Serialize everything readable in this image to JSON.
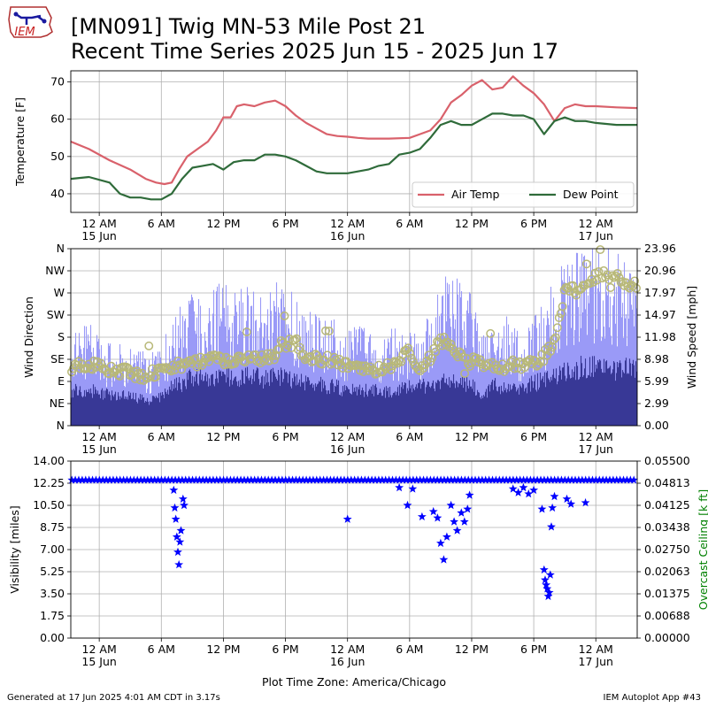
{
  "header": {
    "logo_text": "IEM",
    "title_line1": "[MN091] Twig MN-53 Mile Post 21",
    "title_line2": "Recent Time Series 2025 Jun 15 - 2025 Jun 17"
  },
  "footer": {
    "generated": "Generated at 17 Jun 2025 4:01 AM CDT in 3.17s",
    "app": "IEM Autoplot App #43"
  },
  "colors": {
    "air_temp": "#d9616b",
    "dew_point": "#2f6b3a",
    "wind_gust": "#9a9af7",
    "wind_speed": "#383896",
    "wind_dir": "#b8b878",
    "visibility": "#0000ff",
    "ceiling_axis": "#008000"
  },
  "chart_data": [
    {
      "type": "line",
      "x_unit": "hours since 15 Jun 2025 00:00 CDT (Plot Time Zone: America/Chicago)",
      "x_range": [
        -2.75,
        52.0
      ],
      "xticks": [
        {
          "x": 0,
          "l1": "12 AM",
          "l2": "15 Jun"
        },
        {
          "x": 6,
          "l1": "6 AM",
          "l2": ""
        },
        {
          "x": 12,
          "l1": "12 PM",
          "l2": ""
        },
        {
          "x": 18,
          "l1": "6 PM",
          "l2": ""
        },
        {
          "x": 24,
          "l1": "12 AM",
          "l2": "16 Jun"
        },
        {
          "x": 30,
          "l1": "6 AM",
          "l2": ""
        },
        {
          "x": 36,
          "l1": "12 PM",
          "l2": ""
        },
        {
          "x": 42,
          "l1": "6 PM",
          "l2": ""
        },
        {
          "x": 48,
          "l1": "12 AM",
          "l2": "17 Jun"
        }
      ],
      "ylabel": "Temperature [F]",
      "ylim": [
        35,
        73
      ],
      "yticks": [
        40,
        50,
        60,
        70
      ],
      "grid": true,
      "legend_position": "lower-right",
      "legend_columns": 2,
      "series": [
        {
          "name": "Air Temp",
          "key": "air_temp",
          "x": [
            -2.75,
            -1,
            1,
            3,
            4.5,
            5.5,
            6.3,
            7,
            7.7,
            8.5,
            9.5,
            10.5,
            11.3,
            12,
            12.7,
            13.3,
            14,
            15,
            16,
            17,
            18,
            19,
            20,
            21,
            22,
            23,
            24,
            25,
            26,
            28,
            30,
            31,
            32,
            33,
            34,
            35,
            36,
            37,
            38,
            39,
            40,
            41,
            42,
            43,
            44,
            45,
            46,
            47,
            48,
            50,
            52
          ],
          "y": [
            54,
            52,
            49,
            46.5,
            44,
            43,
            42.6,
            43,
            46.5,
            50,
            52,
            54,
            57,
            60.5,
            60.5,
            63.5,
            64,
            63.5,
            64.5,
            65,
            63.5,
            61,
            59,
            57.5,
            56,
            55.5,
            55.3,
            55,
            54.8,
            54.8,
            55,
            56,
            57,
            60,
            64.5,
            66.5,
            69,
            70.5,
            68,
            68.5,
            71.5,
            69,
            67,
            64,
            59.5,
            63,
            64,
            63.5,
            63.5,
            63.2,
            63
          ]
        },
        {
          "name": "Dew Point",
          "key": "dew_point",
          "x": [
            -2.75,
            -1,
            1,
            2,
            3,
            4,
            5,
            6,
            7,
            8,
            9,
            10,
            11,
            12,
            13,
            14,
            15,
            16,
            17,
            18,
            19,
            20,
            21,
            22,
            23,
            24,
            25,
            26,
            27,
            28,
            29,
            30,
            31,
            32,
            33,
            34,
            35,
            36,
            37,
            38,
            39,
            40,
            41,
            42,
            43,
            44,
            45,
            46,
            47,
            48,
            50,
            52
          ],
          "y": [
            44,
            44.5,
            43,
            40,
            39,
            39,
            38.5,
            38.5,
            40,
            44,
            47,
            47.5,
            48,
            46.5,
            48.5,
            49,
            49,
            50.5,
            50.5,
            50,
            49,
            47.5,
            46,
            45.5,
            45.5,
            45.5,
            46,
            46.5,
            47.5,
            48,
            50.5,
            51,
            52,
            55,
            58.5,
            59.5,
            58.5,
            58.5,
            60,
            61.5,
            61.5,
            61,
            61,
            60,
            56,
            59.5,
            60.5,
            59.5,
            59.5,
            59,
            58.5,
            58.5
          ]
        }
      ]
    },
    {
      "type": "bar",
      "x_unit": "hours since 15 Jun 2025 00:00 CDT (Plot Time Zone: America/Chicago)",
      "x_range": [
        -2.75,
        52.0
      ],
      "xticks": [
        {
          "x": 0,
          "l1": "12 AM",
          "l2": "15 Jun"
        },
        {
          "x": 6,
          "l1": "6 AM",
          "l2": ""
        },
        {
          "x": 12,
          "l1": "12 PM",
          "l2": ""
        },
        {
          "x": 18,
          "l1": "6 PM",
          "l2": ""
        },
        {
          "x": 24,
          "l1": "12 AM",
          "l2": "16 Jun"
        },
        {
          "x": 30,
          "l1": "6 AM",
          "l2": ""
        },
        {
          "x": 36,
          "l1": "12 PM",
          "l2": ""
        },
        {
          "x": 42,
          "l1": "6 PM",
          "l2": ""
        },
        {
          "x": 48,
          "l1": "12 AM",
          "l2": "17 Jun"
        }
      ],
      "ylabel": "Wind Direction",
      "ylim": [
        0,
        360
      ],
      "yticks": [
        {
          "v": 0,
          "l": "N"
        },
        {
          "v": 45,
          "l": "NE"
        },
        {
          "v": 90,
          "l": "E"
        },
        {
          "v": 135,
          "l": "SE"
        },
        {
          "v": 180,
          "l": "S"
        },
        {
          "v": 225,
          "l": "SW"
        },
        {
          "v": 270,
          "l": "W"
        },
        {
          "v": 315,
          "l": "NW"
        },
        {
          "v": 360,
          "l": "N"
        }
      ],
      "y2label": "Wind Speed [mph]",
      "y2lim": [
        0,
        23.96
      ],
      "y2ticks": [
        "0.00",
        "2.99",
        "5.99",
        "8.98",
        "11.98",
        "14.97",
        "17.97",
        "20.96",
        "23.96"
      ],
      "grid": true,
      "wind_gust_mph": {
        "x": [
          -2.75,
          -1,
          1,
          3,
          5,
          6,
          7,
          8,
          9,
          10,
          11,
          12,
          13,
          14,
          15,
          16,
          17,
          18,
          19,
          20,
          21,
          22,
          23,
          24,
          25,
          26,
          27,
          28,
          29,
          30,
          31,
          32,
          33,
          34,
          35,
          36,
          37,
          38,
          39,
          40,
          41,
          42,
          43,
          44,
          45,
          46,
          47,
          48,
          49,
          50,
          51,
          52
        ],
        "y": [
          10,
          10,
          8,
          8,
          7,
          8,
          10,
          12,
          13,
          14,
          13,
          15,
          13,
          14,
          13,
          12,
          14,
          14,
          13,
          12,
          11,
          11,
          10,
          9.5,
          10,
          9.5,
          9,
          9.5,
          10,
          10,
          9,
          11,
          14,
          15,
          14,
          13,
          9,
          13,
          11,
          10,
          10,
          11,
          12,
          15,
          16,
          17,
          18,
          18,
          18,
          17,
          17,
          17
        ]
      },
      "wind_speed_mph": {
        "x": [
          -2.75,
          -1,
          1,
          3,
          5,
          6,
          7,
          8,
          9,
          10,
          11,
          12,
          13,
          14,
          15,
          16,
          17,
          18,
          19,
          20,
          21,
          22,
          23,
          24,
          25,
          26,
          27,
          28,
          29,
          30,
          31,
          32,
          33,
          34,
          35,
          36,
          37,
          38,
          39,
          40,
          41,
          42,
          43,
          44,
          45,
          46,
          47,
          48,
          49,
          50,
          51,
          52
        ],
        "y": [
          5,
          5,
          4.5,
          4,
          3.5,
          4,
          6,
          6,
          7,
          7,
          6.5,
          7,
          7,
          7,
          7,
          6.5,
          7,
          7,
          6.5,
          6,
          6,
          5.5,
          5.5,
          5,
          5,
          5,
          5,
          5,
          5,
          5.5,
          5.5,
          6,
          6,
          6.5,
          6,
          6,
          4,
          6,
          5.5,
          5.5,
          5.5,
          6,
          6.5,
          7,
          7.5,
          8,
          8.5,
          8.5,
          8.5,
          8,
          8,
          8
        ]
      },
      "wind_direction_deg": {
        "x": [
          -2.75,
          -1,
          0,
          1,
          2,
          3,
          4,
          5,
          6,
          7,
          8,
          9,
          10,
          11,
          12,
          13,
          14,
          15,
          16,
          17,
          18,
          19,
          20,
          21,
          22,
          23,
          24,
          25,
          26,
          27,
          28,
          29,
          30,
          31,
          32,
          33,
          34,
          35,
          36,
          37,
          38,
          39,
          40,
          41,
          42,
          43,
          44,
          45,
          46,
          47,
          48,
          49,
          50,
          51,
          52
        ],
        "y": [
          120,
          125,
          120,
          115,
          110,
          110,
          100,
          105,
          110,
          115,
          125,
          130,
          130,
          135,
          130,
          130,
          140,
          135,
          135,
          140,
          165,
          170,
          140,
          135,
          135,
          135,
          120,
          120,
          115,
          115,
          120,
          130,
          155,
          110,
          140,
          175,
          165,
          140,
          130,
          125,
          125,
          120,
          125,
          125,
          125,
          140,
          175,
          275,
          275,
          285,
          305,
          310,
          300,
          290,
          285
        ]
      }
    },
    {
      "type": "scatter",
      "x_unit": "hours since 15 Jun 2025 00:00 CDT (Plot Time Zone: America/Chicago)",
      "x_range": [
        -2.75,
        52.0
      ],
      "xticks": [
        {
          "x": 0,
          "l1": "12 AM",
          "l2": "15 Jun"
        },
        {
          "x": 6,
          "l1": "6 AM",
          "l2": ""
        },
        {
          "x": 12,
          "l1": "12 PM",
          "l2": ""
        },
        {
          "x": 18,
          "l1": "6 PM",
          "l2": ""
        },
        {
          "x": 24,
          "l1": "12 AM",
          "l2": "16 Jun"
        },
        {
          "x": 30,
          "l1": "6 AM",
          "l2": ""
        },
        {
          "x": 36,
          "l1": "12 PM",
          "l2": ""
        },
        {
          "x": 42,
          "l1": "6 PM",
          "l2": ""
        },
        {
          "x": 48,
          "l1": "12 AM",
          "l2": "17 Jun"
        }
      ],
      "xlabel": "Plot Time Zone: America/Chicago",
      "ylabel": "Visibility [miles]",
      "ylim": [
        0,
        14
      ],
      "yticks": [
        "0.00",
        "1.75",
        "3.50",
        "5.25",
        "7.00",
        "8.75",
        "10.50",
        "12.25",
        "14.00"
      ],
      "y2label": "Overcast Ceiling [k ft]",
      "y2lim": [
        0,
        0.055
      ],
      "y2ticks": [
        "0.00000",
        "0.00688",
        "0.01375",
        "0.02063",
        "0.02750",
        "0.03438",
        "0.04125",
        "0.04813",
        "0.05500"
      ],
      "grid": true,
      "marker": "star",
      "baseline_visibility": 12.5,
      "visibility_dips": [
        {
          "x": 7.2,
          "y": 11.7
        },
        {
          "x": 7.3,
          "y": 10.3
        },
        {
          "x": 7.4,
          "y": 9.4
        },
        {
          "x": 7.5,
          "y": 8.0
        },
        {
          "x": 7.6,
          "y": 6.8
        },
        {
          "x": 7.7,
          "y": 5.8
        },
        {
          "x": 7.8,
          "y": 7.6
        },
        {
          "x": 7.9,
          "y": 8.5
        },
        {
          "x": 8.1,
          "y": 11.0
        },
        {
          "x": 8.2,
          "y": 10.5
        },
        {
          "x": 24.0,
          "y": 9.4
        },
        {
          "x": 29.0,
          "y": 11.9
        },
        {
          "x": 29.8,
          "y": 10.5
        },
        {
          "x": 30.3,
          "y": 11.8
        },
        {
          "x": 31.2,
          "y": 9.6
        },
        {
          "x": 32.3,
          "y": 10.0
        },
        {
          "x": 32.7,
          "y": 9.5
        },
        {
          "x": 33.0,
          "y": 7.5
        },
        {
          "x": 33.3,
          "y": 6.2
        },
        {
          "x": 33.6,
          "y": 8.0
        },
        {
          "x": 34.0,
          "y": 10.5
        },
        {
          "x": 34.3,
          "y": 9.2
        },
        {
          "x": 34.6,
          "y": 8.5
        },
        {
          "x": 35.0,
          "y": 9.9
        },
        {
          "x": 35.3,
          "y": 9.2
        },
        {
          "x": 35.6,
          "y": 10.2
        },
        {
          "x": 35.8,
          "y": 11.3
        },
        {
          "x": 40.0,
          "y": 11.8
        },
        {
          "x": 40.5,
          "y": 11.5
        },
        {
          "x": 41.0,
          "y": 11.9
        },
        {
          "x": 41.5,
          "y": 11.4
        },
        {
          "x": 42.0,
          "y": 11.7
        },
        {
          "x": 42.8,
          "y": 10.2
        },
        {
          "x": 43.0,
          "y": 5.4
        },
        {
          "x": 43.1,
          "y": 4.6
        },
        {
          "x": 43.2,
          "y": 4.2
        },
        {
          "x": 43.3,
          "y": 3.9
        },
        {
          "x": 43.4,
          "y": 3.3
        },
        {
          "x": 43.5,
          "y": 3.6
        },
        {
          "x": 43.6,
          "y": 5.0
        },
        {
          "x": 43.7,
          "y": 8.8
        },
        {
          "x": 43.8,
          "y": 10.3
        },
        {
          "x": 44.0,
          "y": 11.2
        },
        {
          "x": 45.2,
          "y": 11.0
        },
        {
          "x": 45.6,
          "y": 10.6
        },
        {
          "x": 47.0,
          "y": 10.7
        }
      ]
    }
  ]
}
